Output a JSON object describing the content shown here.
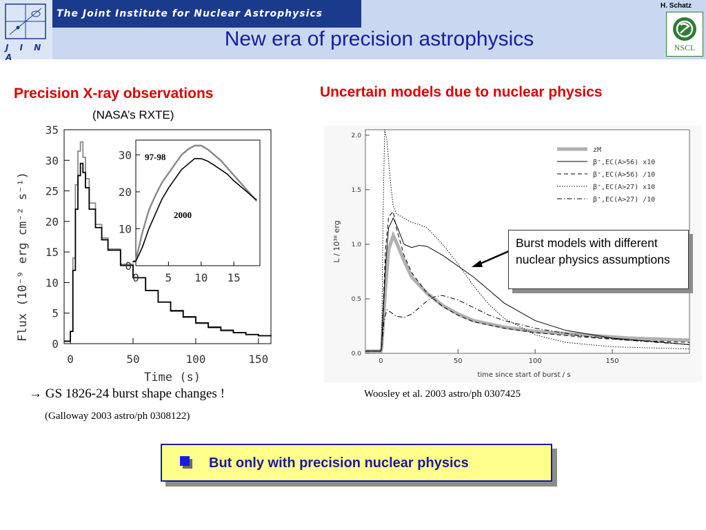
{
  "header": {
    "logo_text": "J I N A",
    "institute": "The Joint Institute for Nuclear Astrophysics",
    "title": "New era of precision astrophysics",
    "author": "H. Schatz",
    "nscl_label": "NSCL"
  },
  "left": {
    "heading": "Precision X-ray observations",
    "subheading": "(NASA’s RXTE)",
    "caption": "GS 1826-24 burst shape changes !",
    "reference": "(Galloway 2003 astro/ph 0308122)"
  },
  "right": {
    "heading": "Uncertain models due to nuclear physics",
    "reference": "Woosley et al. 2003  astro/ph 0307425",
    "callout": "Burst models with different nuclear physics assumptions"
  },
  "bottom_box": {
    "text": "But only with precision nuclear physics"
  },
  "chart_data": [
    {
      "type": "line",
      "xlabel": "Time (s)",
      "ylabel": "Flux (10⁻⁹ erg cm⁻² s⁻¹)",
      "xlim": [
        -5,
        160
      ],
      "ylim": [
        0,
        35
      ],
      "xticks": [
        0,
        50,
        100,
        150
      ],
      "yticks": [
        0,
        5,
        10,
        15,
        20,
        25,
        30,
        35
      ],
      "series": [
        {
          "name": "97-98",
          "color": "#888888",
          "x": [
            -5,
            -1,
            0,
            2,
            4,
            6,
            8,
            10,
            12,
            15,
            20,
            25,
            30,
            40,
            50,
            60,
            70,
            80,
            90,
            100,
            110,
            120,
            130,
            140,
            150,
            160
          ],
          "y": [
            0.4,
            0.4,
            2,
            14,
            26,
            31.5,
            33,
            30.5,
            27,
            23,
            19.5,
            17.3,
            15.5,
            13,
            10.8,
            8.7,
            6.8,
            5.3,
            4.3,
            3.3,
            2.6,
            2.1,
            1.8,
            1.5,
            1.3,
            1.2
          ]
        },
        {
          "name": "2000",
          "color": "#000000",
          "x": [
            -5,
            -1,
            0,
            2,
            4,
            6,
            8,
            10,
            12,
            15,
            20,
            25,
            30,
            40,
            50,
            60,
            70,
            80,
            90,
            100,
            110,
            120,
            130,
            140,
            150,
            160
          ],
          "y": [
            0.4,
            0.4,
            2,
            12,
            22,
            27.5,
            29.5,
            28,
            25.5,
            22,
            19,
            17,
            15.3,
            12.8,
            10.8,
            8.7,
            6.8,
            5.4,
            4.4,
            3.4,
            2.7,
            2.2,
            1.8,
            1.5,
            1.3,
            1.2
          ]
        }
      ]
    },
    {
      "type": "line",
      "xlim": [
        0,
        19
      ],
      "ylim": [
        0,
        34
      ],
      "xticks": [
        0,
        5,
        10,
        15
      ],
      "yticks": [
        0,
        10,
        20,
        30
      ],
      "series": [
        {
          "name": "97-98",
          "color": "#888888",
          "x": [
            -0.5,
            0,
            1,
            2,
            3,
            4,
            5,
            6,
            7,
            8,
            9,
            10,
            11,
            12,
            13,
            14,
            15,
            16,
            17,
            18,
            18.5
          ],
          "y": [
            1,
            1.5,
            9,
            15,
            19,
            22.5,
            25,
            27.5,
            30,
            31.5,
            32.5,
            32.5,
            31.5,
            30,
            28.5,
            26.5,
            24.5,
            22.5,
            20.5,
            18.5,
            17.5
          ]
        },
        {
          "name": "2000",
          "color": "#000000",
          "x": [
            -0.5,
            0,
            1,
            2,
            3,
            4,
            5,
            6,
            7,
            8,
            9,
            10,
            11,
            12,
            13,
            14,
            15,
            16,
            17,
            18,
            18.5
          ],
          "y": [
            1,
            1.2,
            5,
            10,
            14,
            18,
            21,
            23.5,
            26,
            27.5,
            29,
            29,
            28.3,
            27.2,
            26,
            24.8,
            23,
            21.5,
            20,
            18.5,
            17.8
          ]
        }
      ]
    },
    {
      "type": "line",
      "xlabel": "time since start of burst / s",
      "ylabel": "L / 10³⁸ erg",
      "xlim": [
        -10,
        200
      ],
      "ylim": [
        0,
        2.05
      ],
      "xticks": [
        0,
        50,
        100,
        150
      ],
      "yticks": [
        0.0,
        0.5,
        1.0,
        1.5,
        2.0
      ],
      "series": [
        {
          "name": "zM",
          "style": "thick-gray",
          "x": [
            -10,
            0,
            0.5,
            3,
            5,
            8,
            10,
            15,
            20,
            30,
            40,
            50,
            60,
            80,
            100,
            130,
            160,
            200
          ],
          "y": [
            0.02,
            0.02,
            0.05,
            0.6,
            0.95,
            1.08,
            1.02,
            0.85,
            0.7,
            0.55,
            0.44,
            0.36,
            0.3,
            0.24,
            0.2,
            0.17,
            0.14,
            0.12
          ]
        },
        {
          "name": "β⁺,EC(A>56) x10",
          "style": "solid",
          "x": [
            -10,
            0,
            0.5,
            3,
            5,
            8,
            10,
            15,
            20,
            25,
            30,
            40,
            50,
            60,
            70,
            80,
            100,
            120,
            150,
            200
          ],
          "y": [
            0.02,
            0.02,
            0.05,
            0.8,
            1.15,
            1.24,
            1.18,
            1.0,
            0.97,
            0.99,
            0.98,
            0.9,
            0.8,
            0.7,
            0.58,
            0.46,
            0.3,
            0.21,
            0.14,
            0.08
          ]
        },
        {
          "name": "β⁺,EC(A>56) /10",
          "style": "dashed",
          "x": [
            -10,
            0,
            0.5,
            3,
            5,
            8,
            10,
            15,
            20,
            30,
            40,
            50,
            60,
            80,
            100,
            130,
            160,
            200
          ],
          "y": [
            0.02,
            0.02,
            0.05,
            0.95,
            1.25,
            1.3,
            1.15,
            0.9,
            0.74,
            0.55,
            0.43,
            0.35,
            0.29,
            0.23,
            0.19,
            0.15,
            0.12,
            0.1
          ]
        },
        {
          "name": "β⁺,EC(A>27) x10",
          "style": "dotted",
          "x": [
            -10,
            0,
            0.5,
            1.5,
            2.5,
            4,
            6,
            8,
            10,
            15,
            20,
            25,
            30,
            40,
            50,
            60,
            70,
            80,
            100,
            120,
            150,
            200
          ],
          "y": [
            0.02,
            0.02,
            0.05,
            1.3,
            2.05,
            1.95,
            1.6,
            1.35,
            1.28,
            1.24,
            1.2,
            1.18,
            1.15,
            1.0,
            0.82,
            0.62,
            0.45,
            0.32,
            0.17,
            0.1,
            0.06,
            0.04
          ]
        },
        {
          "name": "β⁺,EC(A>27) /10",
          "style": "dashdot",
          "x": [
            -10,
            0,
            0.5,
            2,
            4,
            6,
            10,
            15,
            20,
            25,
            30,
            35,
            40,
            50,
            60,
            70,
            80,
            100,
            130,
            160,
            200
          ],
          "y": [
            0.02,
            0.02,
            0.05,
            0.3,
            0.4,
            0.38,
            0.34,
            0.33,
            0.36,
            0.42,
            0.48,
            0.52,
            0.53,
            0.49,
            0.42,
            0.35,
            0.3,
            0.23,
            0.16,
            0.12,
            0.08
          ]
        }
      ]
    }
  ]
}
